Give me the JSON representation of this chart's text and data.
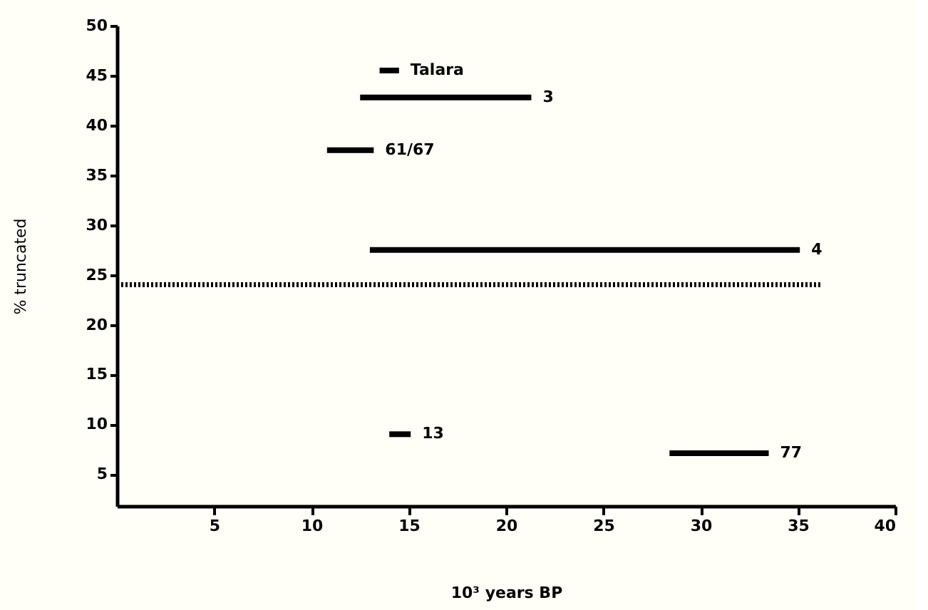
{
  "chart_data": {
    "type": "line",
    "xlabel": "10³ years BP",
    "ylabel": "% truncated",
    "xlim": [
      0,
      40
    ],
    "ylim": [
      1.8,
      50
    ],
    "xticks": [
      5,
      10,
      15,
      20,
      25,
      30,
      35,
      40
    ],
    "yticks": [
      5,
      10,
      15,
      20,
      25,
      30,
      35,
      40,
      45,
      50
    ],
    "grid": false,
    "marker": "none",
    "series": [
      {
        "name": "Talara",
        "color": "#000000",
        "x": [
          13.5,
          14.5
        ],
        "values": [
          45.5,
          45.5
        ]
      },
      {
        "name": "3",
        "color": "#000000",
        "x": [
          12.5,
          21.3
        ],
        "values": [
          42.8,
          42.8
        ]
      },
      {
        "name": "61/67",
        "color": "#000000",
        "x": [
          10.8,
          13.2
        ],
        "values": [
          37.5,
          37.5
        ]
      },
      {
        "name": "4",
        "color": "#000000",
        "x": [
          13,
          35.1
        ],
        "values": [
          27.5,
          27.5
        ]
      },
      {
        "color": "#000000",
        "x": [
          0,
          36.2
        ],
        "values": [
          24,
          24
        ],
        "line_style": "dotted"
      },
      {
        "name": "13",
        "color": "#000000",
        "x": [
          14,
          15.1
        ],
        "values": [
          9,
          9
        ]
      },
      {
        "name": "77",
        "color": "#000000",
        "x": [
          28.4,
          33.5
        ],
        "values": [
          7.1,
          7.1
        ]
      }
    ]
  }
}
